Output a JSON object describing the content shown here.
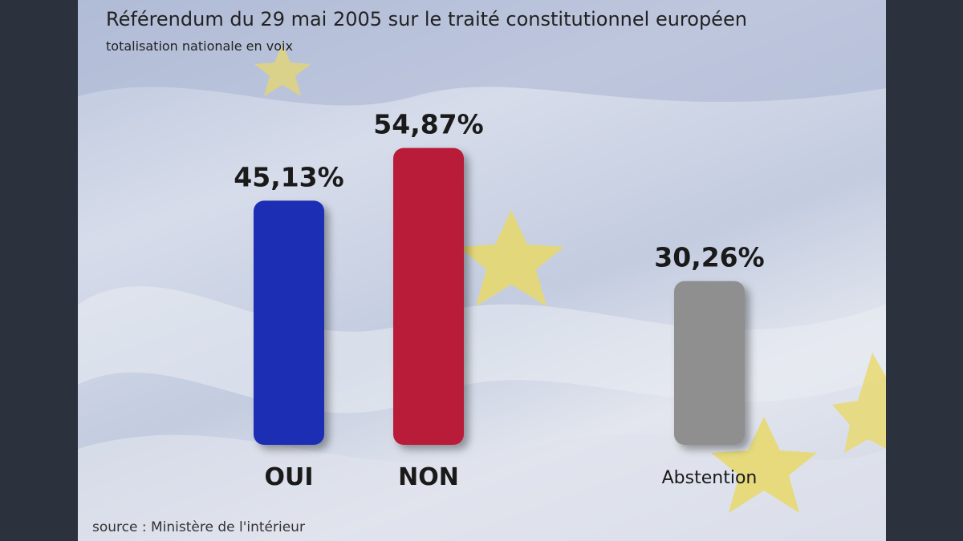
{
  "title": "Référendum du 29 mai 2005 sur le traité constitutionnel européen",
  "subtitle": "totalisation nationale en voix",
  "source": "source : Ministère de l'intérieur",
  "colors": {
    "oui": "#1f2eb4",
    "non": "#b81f38",
    "abstention": "#8f8f8f",
    "star": "#e8d86a",
    "text": "#1a1a1a"
  },
  "chart_data": {
    "type": "bar",
    "title": "Référendum du 29 mai 2005 sur le traité constitutionnel européen",
    "subtitle": "totalisation nationale en voix",
    "xlabel": "",
    "ylabel": "",
    "categories": [
      "OUI",
      "NON",
      "Abstention"
    ],
    "values": [
      45.13,
      54.87,
      30.26
    ],
    "value_labels": [
      "45,13%",
      "54,87%",
      "30,26%"
    ],
    "grid": false,
    "legend": "none"
  }
}
